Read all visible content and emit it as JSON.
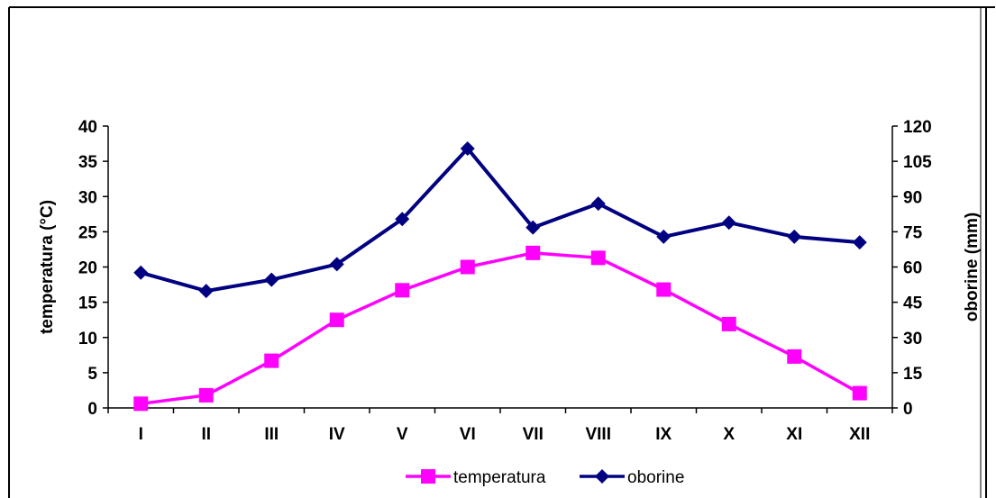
{
  "chart_data": {
    "type": "line",
    "title": "",
    "categories": [
      "I",
      "II",
      "III",
      "IV",
      "V",
      "VI",
      "VII",
      "VIII",
      "IX",
      "X",
      "XI",
      "XII"
    ],
    "y_left": {
      "label": "temperatura (°C)",
      "range": [
        0,
        40
      ],
      "ticks": [
        0,
        5,
        10,
        15,
        20,
        25,
        30,
        35,
        40
      ]
    },
    "y_right": {
      "label": "oborine (mm)",
      "range": [
        0,
        120
      ],
      "ticks": [
        0,
        15,
        30,
        45,
        60,
        75,
        90,
        105,
        120
      ]
    },
    "grid": false,
    "legend_position": "bottom",
    "series": [
      {
        "name": "temperatura",
        "axis": "left",
        "color": "#ff00ff",
        "marker": "square",
        "values": [
          0.6,
          1.8,
          6.7,
          12.5,
          16.7,
          20.0,
          22.0,
          21.3,
          16.8,
          11.9,
          7.3,
          2.1
        ]
      },
      {
        "name": "oborine",
        "axis": "right",
        "color": "#000080",
        "marker": "diamond",
        "values": [
          57.6,
          49.8,
          54.6,
          61.2,
          80.4,
          110.4,
          76.8,
          87.0,
          72.9,
          78.9,
          72.9,
          70.5
        ]
      }
    ]
  }
}
